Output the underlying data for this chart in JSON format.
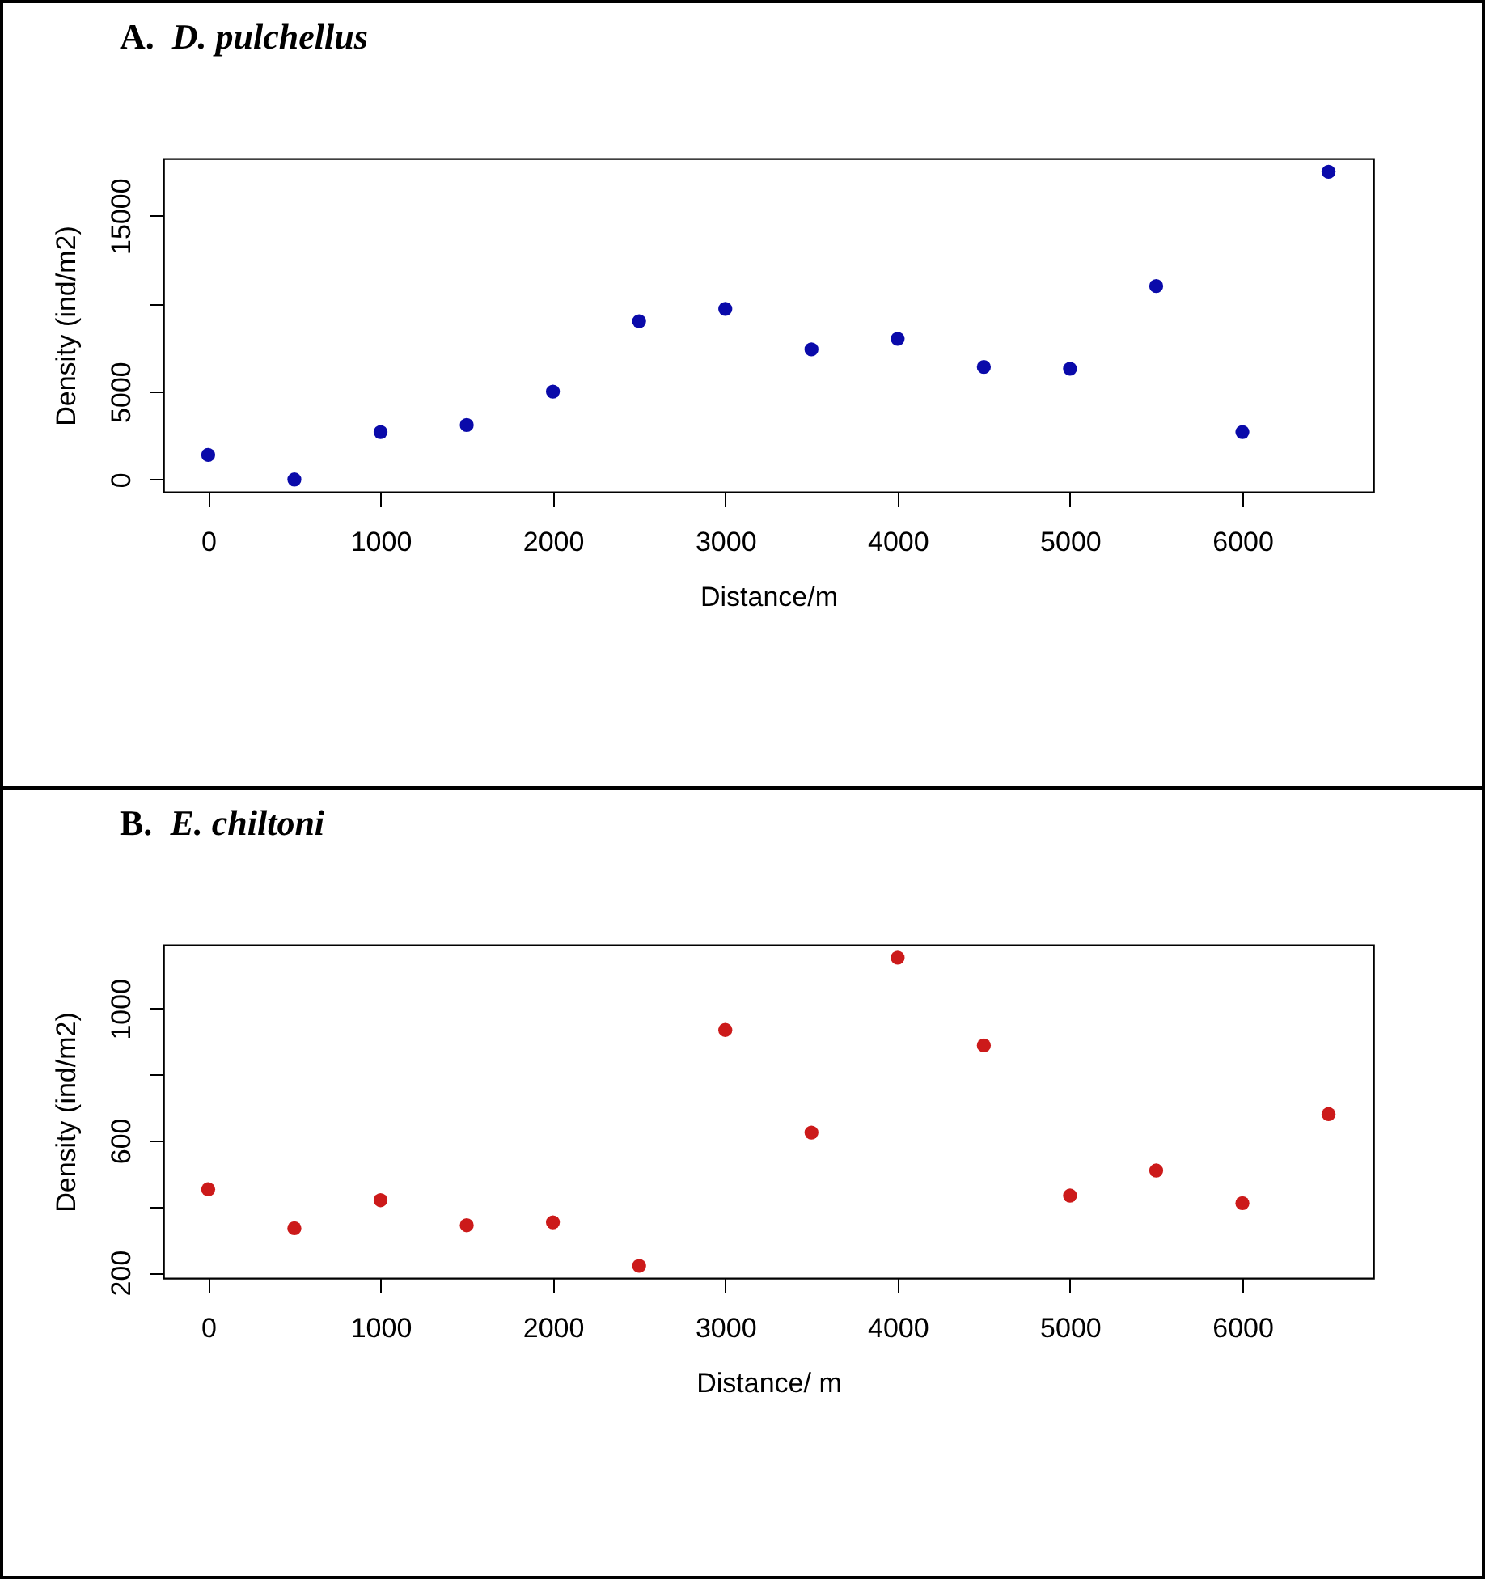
{
  "chart_data": [
    {
      "type": "scatter",
      "title": "A. D. pulchellus",
      "xlabel": "Distance/m",
      "ylabel": "Density (ind/m2)",
      "x": [
        0,
        500,
        1000,
        1500,
        2000,
        2500,
        3000,
        3500,
        4000,
        4500,
        5000,
        5500,
        6000,
        6500
      ],
      "series": [
        {
          "color": "#0a0aaa",
          "values": [
            1400,
            0,
            2700,
            3100,
            5000,
            9000,
            9700,
            7400,
            8000,
            6400,
            6300,
            11000,
            2700,
            17500
          ]
        }
      ],
      "xlim": [
        -260,
        6760
      ],
      "ylim": [
        -700,
        18250
      ],
      "xticks": [
        0,
        1000,
        2000,
        3000,
        4000,
        5000,
        6000
      ],
      "yticks": [
        0,
        5000,
        {
          "value": 10000,
          "label": null
        },
        15000
      ],
      "marker": "circle"
    },
    {
      "type": "scatter",
      "title": "B. E. chiltoni",
      "xlabel": "Distance/ m",
      "ylabel": "Density (ind/m2)",
      "x": [
        0,
        500,
        1000,
        1500,
        2000,
        2500,
        3000,
        3500,
        4000,
        4500,
        5000,
        5500,
        6000,
        6500
      ],
      "series": [
        {
          "color": "#cc1a1a",
          "values": [
            452,
            334,
            419,
            343,
            352,
            220,
            935,
            624,
            1154,
            888,
            433,
            509,
            410,
            680
          ]
        }
      ],
      "xlim": [
        -260,
        6760
      ],
      "ylim": [
        183,
        1193
      ],
      "xticks": [
        0,
        1000,
        2000,
        3000,
        4000,
        5000,
        6000
      ],
      "yticks": [
        200,
        {
          "value": 400,
          "label": null
        },
        600,
        {
          "value": 800,
          "label": null
        },
        1000
      ],
      "marker": "circle"
    }
  ]
}
